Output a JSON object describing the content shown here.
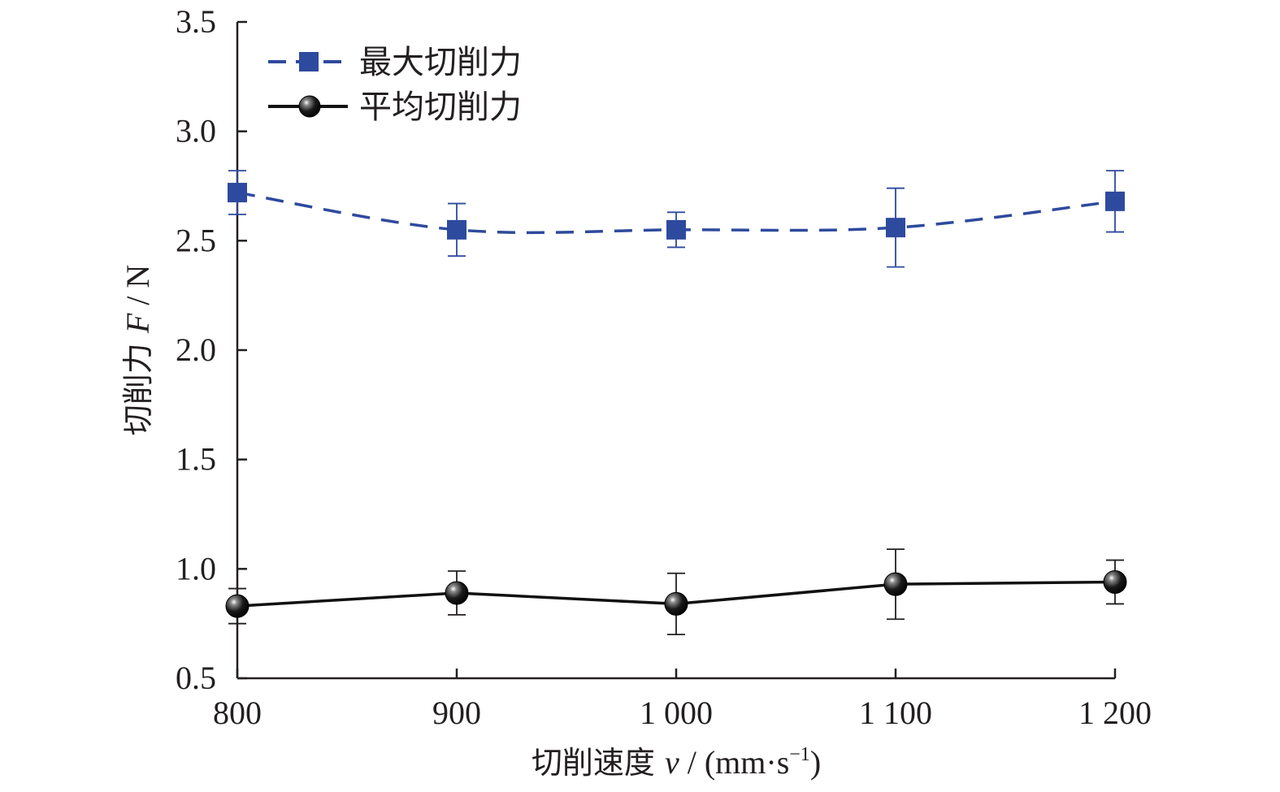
{
  "chart_data": {
    "type": "line",
    "title": "",
    "xlabel_prefix": "切削速度 ",
    "xlabel_var": "v",
    "xlabel_unit": " / (mm·s",
    "xlabel_exp": "−1",
    "xlabel_close": ")",
    "ylabel_prefix": "切削力 ",
    "ylabel_var": "F",
    "ylabel_unit": " / N",
    "x": [
      800,
      900,
      1000,
      1100,
      1200
    ],
    "x_tick_labels": [
      "800",
      "900",
      "1 000",
      "1 100",
      "1 200"
    ],
    "y_tick_labels": [
      "0.5",
      "1.0",
      "1.5",
      "2.0",
      "2.5",
      "3.0",
      "3.5"
    ],
    "xlim": [
      800,
      1200
    ],
    "ylim": [
      0.5,
      3.5
    ],
    "grid": false,
    "legend_position": "top-left",
    "series": [
      {
        "name": "最大切削力",
        "color": "#2e4a9e",
        "line_style": "dashed",
        "marker": "square",
        "values": [
          2.72,
          2.55,
          2.55,
          2.56,
          2.68
        ],
        "error": [
          0.1,
          0.12,
          0.08,
          0.18,
          0.14
        ]
      },
      {
        "name": "平均切削力",
        "color": "#111111",
        "line_style": "solid",
        "marker": "sphere",
        "values": [
          0.83,
          0.89,
          0.84,
          0.93,
          0.94
        ],
        "error": [
          0.08,
          0.1,
          0.14,
          0.16,
          0.1
        ]
      }
    ]
  }
}
